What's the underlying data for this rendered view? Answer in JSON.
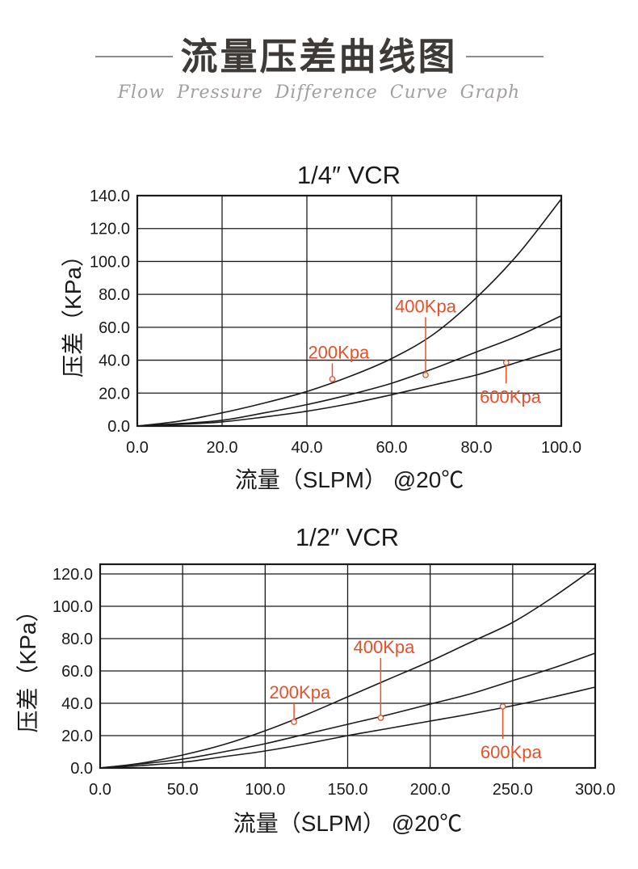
{
  "page": {
    "title": "流量压差曲线图",
    "subtitle": "Flow Pressure Difference Curve Graph"
  },
  "colors": {
    "curve": "#1a1a1a",
    "grid": "#1a1a1a",
    "text": "#1a1a1a",
    "annotation": "#e8502a",
    "title_text": "#3d3a38",
    "subtitle_text": "#a29f9d",
    "divider_line": "#8f8c8a"
  },
  "chart_data": [
    {
      "type": "line",
      "title": "1/4″ VCR",
      "xlabel": "流量（SLPM） @20℃",
      "ylabel": "压差（KPa）",
      "xlim": [
        0,
        100
      ],
      "ylim": [
        0,
        140
      ],
      "xticks": [
        0,
        20,
        40,
        60,
        80,
        100
      ],
      "yticks": [
        0,
        20,
        40,
        60,
        80,
        100,
        120,
        140
      ],
      "grid": true,
      "legend": "none",
      "x": [
        0,
        10,
        20,
        30,
        40,
        50,
        60,
        70,
        80,
        90,
        100
      ],
      "series": [
        {
          "name": "200Kpa",
          "values": [
            0,
            3,
            8,
            14,
            21,
            30,
            41,
            56,
            78,
            105,
            138
          ]
        },
        {
          "name": "400Kpa",
          "values": [
            0,
            1.5,
            3.5,
            8,
            13,
            19,
            26,
            35,
            45,
            55,
            67
          ]
        },
        {
          "name": "600Kpa",
          "values": [
            0,
            1,
            2.5,
            5.5,
            9,
            13.5,
            19,
            25,
            31,
            39,
            47
          ]
        }
      ],
      "annotations": [
        {
          "label": "200Kpa",
          "label_x": 47.5,
          "label_y": 45,
          "point_x": 46,
          "point_y": 28.5
        },
        {
          "label": "400Kpa",
          "label_x": 68,
          "label_y": 73,
          "point_x": 68,
          "point_y": 31
        },
        {
          "label": "600Kpa",
          "label_x": 88,
          "label_y": 18,
          "point_x": 87,
          "point_y": 38.5
        }
      ]
    },
    {
      "type": "line",
      "title": "1/2″ VCR",
      "xlabel": "流量（SLPM） @20℃",
      "ylabel": "压差（KPa）",
      "xlim": [
        0,
        300
      ],
      "ylim": [
        0,
        126
      ],
      "xticks": [
        0,
        50,
        100,
        150,
        200,
        250,
        300
      ],
      "yticks": [
        0,
        20,
        40,
        60,
        80,
        100,
        120
      ],
      "grid": true,
      "legend": "none",
      "x": [
        0,
        25,
        50,
        75,
        100,
        125,
        150,
        175,
        200,
        225,
        250,
        275,
        300
      ],
      "series": [
        {
          "name": "200Kpa",
          "values": [
            0,
            3,
            8,
            14.5,
            23,
            33,
            44,
            55,
            66,
            78,
            90,
            106,
            124
          ]
        },
        {
          "name": "400Kpa",
          "values": [
            0,
            2.5,
            5.5,
            10,
            15,
            21,
            27,
            33,
            39.5,
            46,
            54,
            62,
            71
          ]
        },
        {
          "name": "600Kpa",
          "values": [
            0,
            1.5,
            3.5,
            7,
            10.5,
            15,
            20,
            24.5,
            29,
            33.5,
            38.5,
            44,
            50
          ]
        }
      ],
      "annotations": [
        {
          "label": "200Kpa",
          "label_x": 121,
          "label_y": 47,
          "point_x": 117.5,
          "point_y": 28.5
        },
        {
          "label": "400Kpa",
          "label_x": 172,
          "label_y": 75,
          "point_x": 170,
          "point_y": 31
        },
        {
          "label": "600Kpa",
          "label_x": 249,
          "label_y": 10,
          "point_x": 244,
          "point_y": 38
        }
      ]
    }
  ]
}
